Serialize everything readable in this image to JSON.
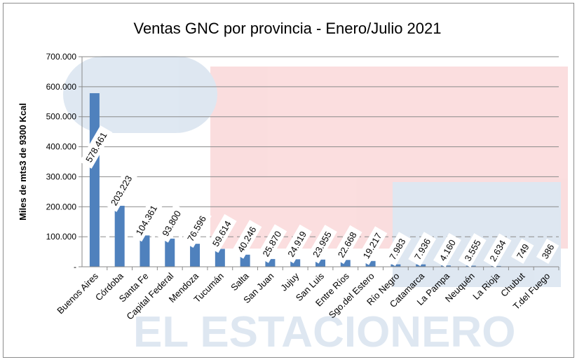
{
  "chart_data": {
    "type": "bar",
    "title": "Ventas GNC por provincia - Enero/Julio 2021",
    "xlabel": "",
    "ylabel": "Miles de mts3 de 9300 Kcal",
    "ylim": [
      0,
      700000
    ],
    "yticks": [
      0,
      100000,
      200000,
      300000,
      400000,
      500000,
      600000,
      700000
    ],
    "ytick_labels": [
      "-",
      "100.000",
      "200.000",
      "300.000",
      "400.000",
      "500.000",
      "600.000",
      "700.000"
    ],
    "grid": true,
    "legend": "none",
    "bar_color": "#4f81bd",
    "categories": [
      "Buenos Aires",
      "Córdoba",
      "Santa Fe",
      "Capital Federal",
      "Mendoza",
      "Tucumán",
      "Salta",
      "San Juan",
      "Jujuy",
      "San Luis",
      "Entre Ríos",
      "Sgo.del Estero",
      "Río Negro",
      "Catamarca",
      "La Pampa",
      "Neuquén",
      "La Rioja",
      "Chubut",
      "T.del Fuego"
    ],
    "values": [
      578461,
      203223,
      104361,
      93800,
      76596,
      59614,
      40246,
      25870,
      24919,
      23955,
      22668,
      19217,
      7983,
      7936,
      4160,
      3555,
      2634,
      749,
      386
    ],
    "data_labels": [
      "578.461",
      "203.223",
      "104.361",
      "93.800",
      "76.596",
      "59.614",
      "40.246",
      "25.870",
      "24.919",
      "23.955",
      "22.668",
      "19.217",
      "7.983",
      "7.936",
      "4.160",
      "3.555",
      "2.634",
      "749",
      "386"
    ],
    "watermark": "EL ESTACIONERO"
  }
}
